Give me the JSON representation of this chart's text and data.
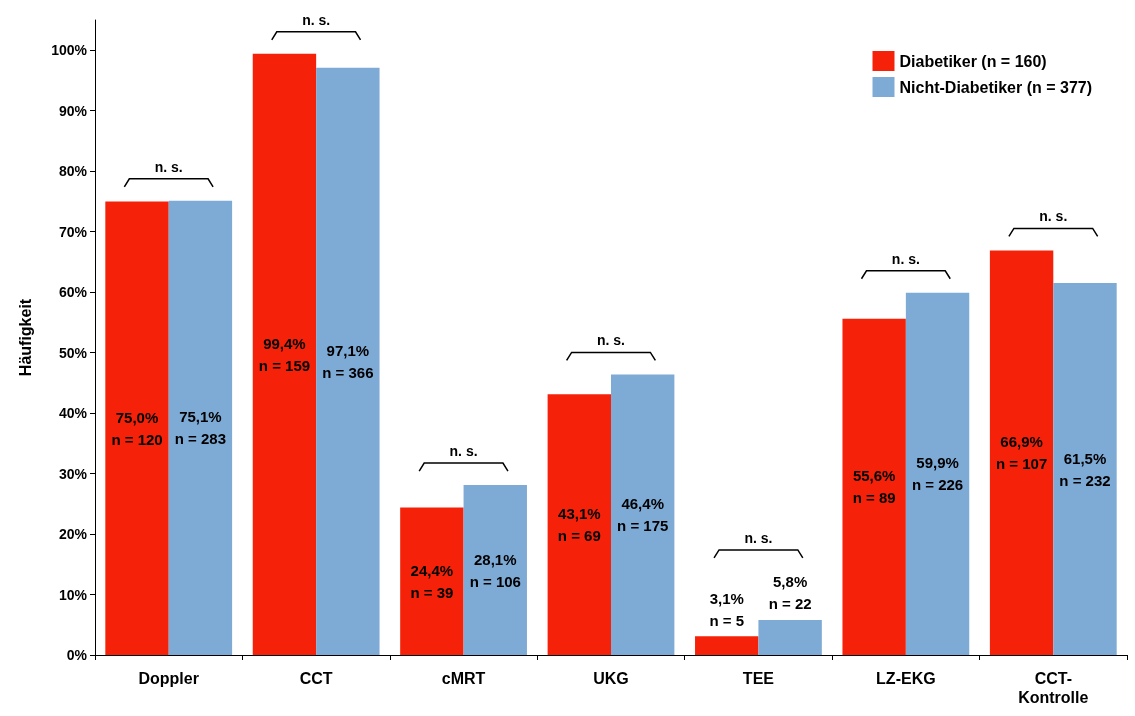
{
  "chart_data": {
    "type": "bar",
    "ylabel": "Häufigkeit",
    "categories": [
      "Doppler",
      "CCT",
      "cMRT",
      "UKG",
      "TEE",
      "LZ-EKG",
      "CCT-\nKontrolle"
    ],
    "series": [
      {
        "name": "Diabetiker (n = 160)",
        "color": "#f52209",
        "values": [
          75.0,
          99.4,
          24.4,
          43.1,
          3.1,
          55.6,
          66.9
        ],
        "value_labels": [
          "75,0%\nn = 120",
          "99,4%\nn = 159",
          "24,4%\nn = 39",
          "43,1%\nn = 69",
          "3,1%\nn = 5",
          "55,6%\nn = 89",
          "66,9%\nn = 107"
        ]
      },
      {
        "name": "Nicht-Diabetiker (n = 377)",
        "color": "#7eaad6",
        "values": [
          75.1,
          97.1,
          28.1,
          46.4,
          5.8,
          59.9,
          61.5
        ],
        "value_labels": [
          "75,1%\nn = 283",
          "97,1%\nn = 366",
          "28,1%\nn = 106",
          "46,4%\nn = 175",
          "5,8%\nn = 22",
          "59,9%\nn = 226",
          "61,5%\nn = 232"
        ]
      }
    ],
    "ylim": [
      0,
      105
    ],
    "yticks": [
      {
        "value": 0,
        "label": "0%"
      },
      {
        "value": 10,
        "label": "10%"
      },
      {
        "value": 20,
        "label": "20%"
      },
      {
        "value": 30,
        "label": "30%"
      },
      {
        "value": 40,
        "label": "40%"
      },
      {
        "value": 50,
        "label": "50%"
      },
      {
        "value": 60,
        "label": "60%"
      },
      {
        "value": 70,
        "label": "70%"
      },
      {
        "value": 80,
        "label": "80%"
      },
      {
        "value": 90,
        "label": "90%"
      },
      {
        "value": 100,
        "label": "100%"
      }
    ],
    "grid": false,
    "legend": "top right",
    "annotations": [
      "n. s.",
      "n. s.",
      "n. s.",
      "n. s.",
      "n. s.",
      "n. s.",
      "n. s."
    ]
  }
}
